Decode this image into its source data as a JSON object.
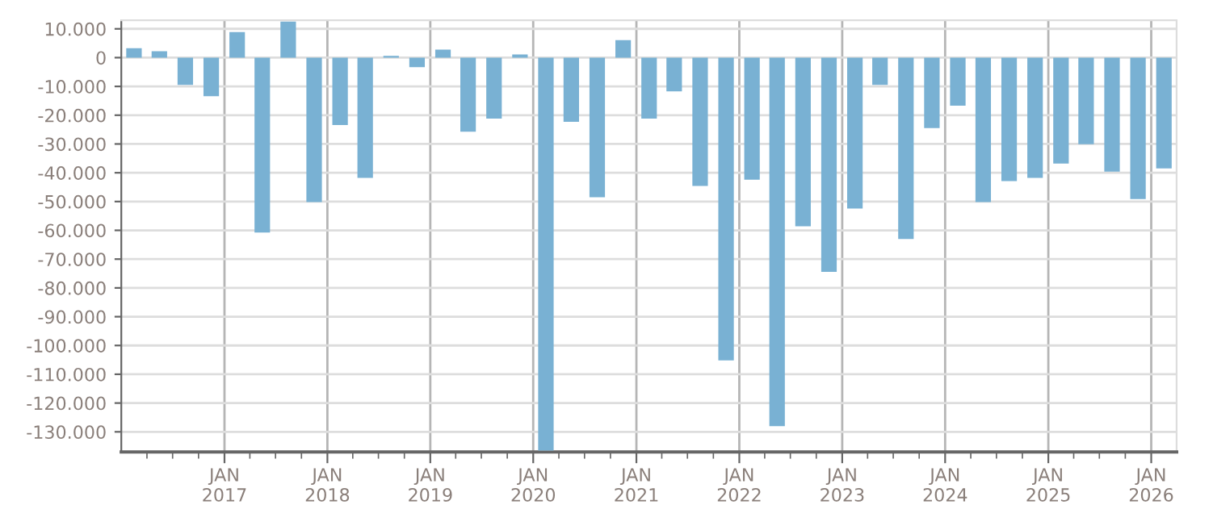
{
  "chart_data": {
    "type": "bar",
    "x": [
      "2016-02-15",
      "2016-05-15",
      "2016-08-15",
      "2016-11-15",
      "2017-02-15",
      "2017-05-15",
      "2017-08-15",
      "2017-11-15",
      "2018-02-15",
      "2018-05-15",
      "2018-08-15",
      "2018-11-15",
      "2019-02-15",
      "2019-05-15",
      "2019-08-15",
      "2019-11-15",
      "2020-02-15",
      "2020-05-15",
      "2020-08-15",
      "2020-11-15",
      "2021-02-15",
      "2021-05-15",
      "2021-08-15",
      "2021-11-15",
      "2022-02-15",
      "2022-05-15",
      "2022-08-15",
      "2022-11-15",
      "2023-02-15",
      "2023-05-15",
      "2023-08-15",
      "2023-11-15",
      "2024-02-15",
      "2024-05-15",
      "2024-08-15",
      "2024-11-15",
      "2025-02-15",
      "2025-05-15",
      "2025-08-15",
      "2025-11-15",
      "2026-02-15"
    ],
    "values": [
      3300,
      2200,
      -9500,
      -13400,
      8900,
      -60800,
      12500,
      -50200,
      -23400,
      -41800,
      600,
      -3300,
      2800,
      -25700,
      -21200,
      1100,
      -136500,
      -22300,
      -48500,
      6100,
      -21200,
      -11700,
      -44600,
      -105200,
      -42400,
      -128000,
      -58600,
      -74400,
      -52400,
      -9500,
      -63000,
      -24500,
      -16700,
      -50200,
      -42900,
      -41800,
      -36800,
      -30100,
      -39600,
      -49100,
      -38500
    ],
    "color": "#79b1d3",
    "xlim": [
      "2016-01-01",
      "2026-04-01"
    ],
    "xticks": [
      {
        "value": "2016-04-01",
        "label": null
      },
      {
        "value": "2016-07-01",
        "label": null
      },
      {
        "value": "2016-10-01",
        "label": null
      },
      {
        "value": "2017-01-01",
        "label": "JAN\n2017"
      },
      {
        "value": "2017-04-01",
        "label": null
      },
      {
        "value": "2017-07-01",
        "label": null
      },
      {
        "value": "2017-10-01",
        "label": null
      },
      {
        "value": "2018-01-01",
        "label": "JAN\n2018"
      },
      {
        "value": "2018-04-01",
        "label": null
      },
      {
        "value": "2018-07-01",
        "label": null
      },
      {
        "value": "2018-10-01",
        "label": null
      },
      {
        "value": "2019-01-01",
        "label": "JAN\n2019"
      },
      {
        "value": "2019-04-01",
        "label": null
      },
      {
        "value": "2019-07-01",
        "label": null
      },
      {
        "value": "2019-10-01",
        "label": null
      },
      {
        "value": "2020-01-01",
        "label": "JAN\n2020"
      },
      {
        "value": "2020-04-01",
        "label": null
      },
      {
        "value": "2020-07-01",
        "label": null
      },
      {
        "value": "2020-10-01",
        "label": null
      },
      {
        "value": "2021-01-01",
        "label": "JAN\n2021"
      },
      {
        "value": "2021-04-01",
        "label": null
      },
      {
        "value": "2021-07-01",
        "label": null
      },
      {
        "value": "2021-10-01",
        "label": null
      },
      {
        "value": "2022-01-01",
        "label": "JAN\n2022"
      },
      {
        "value": "2022-04-01",
        "label": null
      },
      {
        "value": "2022-07-01",
        "label": null
      },
      {
        "value": "2022-10-01",
        "label": null
      },
      {
        "value": "2023-01-01",
        "label": "JAN\n2023"
      },
      {
        "value": "2023-04-01",
        "label": null
      },
      {
        "value": "2023-07-01",
        "label": null
      },
      {
        "value": "2023-10-01",
        "label": null
      },
      {
        "value": "2024-01-01",
        "label": "JAN\n2024"
      },
      {
        "value": "2024-04-01",
        "label": null
      },
      {
        "value": "2024-07-01",
        "label": null
      },
      {
        "value": "2024-10-01",
        "label": null
      },
      {
        "value": "2025-01-01",
        "label": "JAN\n2025"
      },
      {
        "value": "2025-04-01",
        "label": null
      },
      {
        "value": "2025-07-01",
        "label": null
      },
      {
        "value": "2025-10-01",
        "label": null
      },
      {
        "value": "2026-01-01",
        "label": "JAN\n2026"
      }
    ],
    "ylim": [
      -137000,
      13000
    ],
    "yticks": [
      {
        "value": -130000,
        "label": "-130.000"
      },
      {
        "value": -120000,
        "label": "-120.000"
      },
      {
        "value": -110000,
        "label": "-110.000"
      },
      {
        "value": -100000,
        "label": "-100.000"
      },
      {
        "value": -90000,
        "label": "-90.000"
      },
      {
        "value": -80000,
        "label": "-80.000"
      },
      {
        "value": -70000,
        "label": "-70.000"
      },
      {
        "value": -60000,
        "label": "-60.000"
      },
      {
        "value": -50000,
        "label": "-50.000"
      },
      {
        "value": -40000,
        "label": "-40.000"
      },
      {
        "value": -30000,
        "label": "-30.000"
      },
      {
        "value": -20000,
        "label": "-20.000"
      },
      {
        "value": -10000,
        "label": "-10.000"
      },
      {
        "value": 0,
        "label": "0"
      },
      {
        "value": 10000,
        "label": "10.000"
      }
    ],
    "grid": true
  }
}
